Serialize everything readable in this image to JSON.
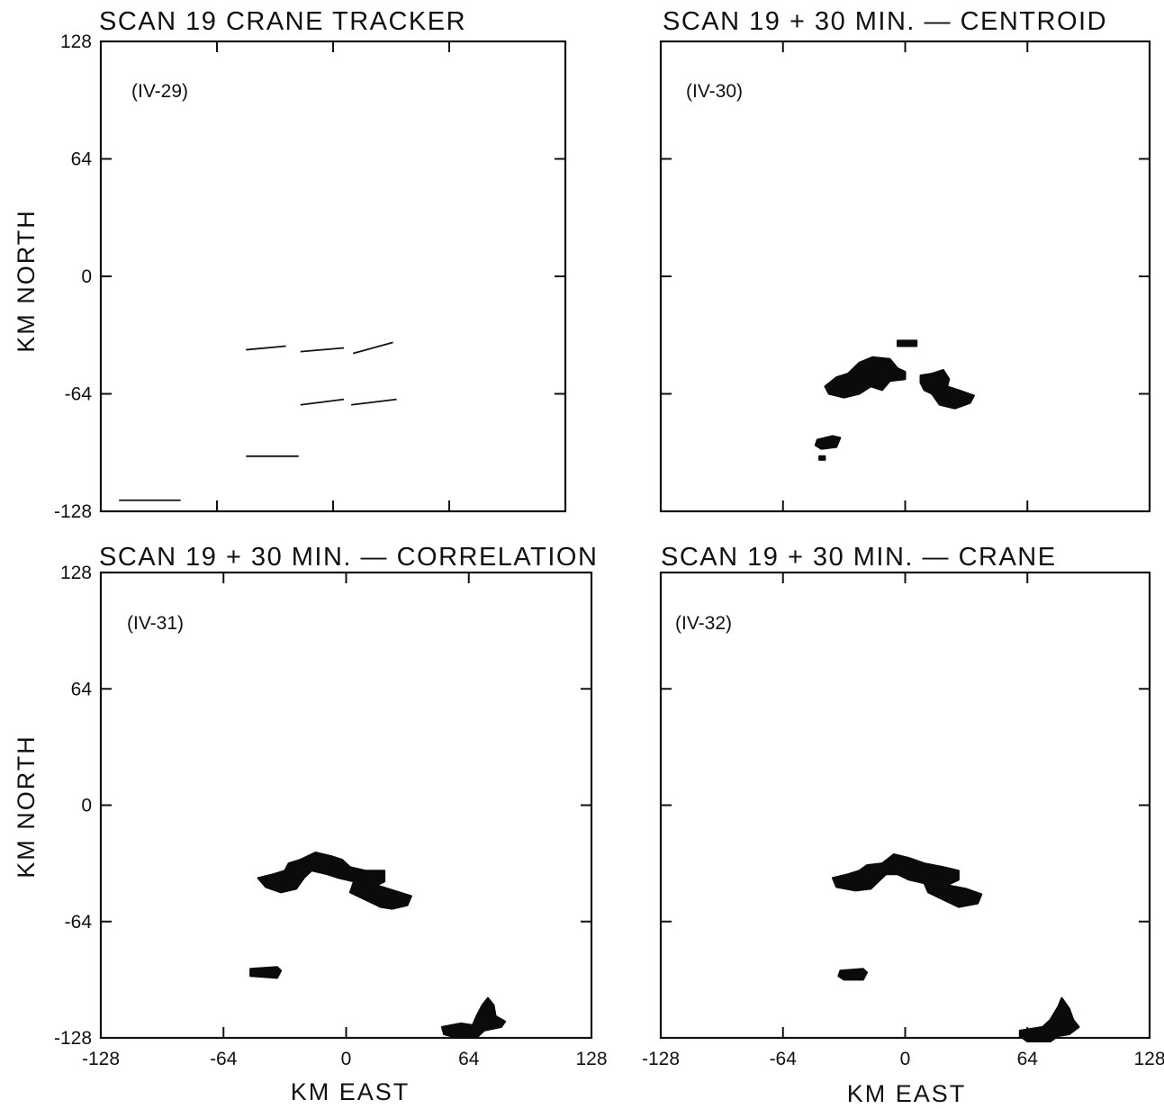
{
  "figure": {
    "xlabel": "KM EAST",
    "ylabel": "KM NORTH"
  },
  "chart_data": [
    {
      "type": "scatter",
      "title": "SCAN 19 CRANE TRACKER",
      "panel_id": "(IV-29)",
      "xlabel": "",
      "ylabel": "KM NORTH",
      "xlim": [
        -128,
        128
      ],
      "ylim": [
        -128,
        128
      ],
      "xticks": [
        -128,
        -64,
        0,
        64,
        128
      ],
      "yticks": [
        128,
        64,
        0,
        -64,
        -128
      ],
      "ytick_labels": [
        "128",
        "64",
        "0",
        "-64",
        "-128"
      ],
      "xtick_labels": [],
      "grid": false,
      "content": "motion vectors",
      "vectors": [
        {
          "x0": -48,
          "y0": -40,
          "x1": -26,
          "y1": -38
        },
        {
          "x0": -18,
          "y0": -41,
          "x1": 6,
          "y1": -39
        },
        {
          "x0": 11,
          "y0": -42,
          "x1": 33,
          "y1": -36
        },
        {
          "x0": -18,
          "y0": -70,
          "x1": 6,
          "y1": -67
        },
        {
          "x0": 10,
          "y0": -70,
          "x1": 35,
          "y1": -67
        },
        {
          "x0": -48,
          "y0": -98,
          "x1": -19,
          "y1": -98
        },
        {
          "x0": -118,
          "y0": -122,
          "x1": -84,
          "y1": -122
        }
      ]
    },
    {
      "type": "scatter",
      "title": "SCAN 19 + 30 MIN. — CENTROID",
      "panel_id": "(IV-30)",
      "xlabel": "",
      "ylabel": "",
      "xlim": [
        -128,
        128
      ],
      "ylim": [
        -128,
        128
      ],
      "xticks": [
        -128,
        -64,
        0,
        64,
        128
      ],
      "yticks": [
        128,
        64,
        0,
        -64,
        -128
      ],
      "xtick_labels": [],
      "ytick_labels": [],
      "grid": false,
      "content": "echo regions",
      "regions": [
        {
          "points": [
            [
              -42,
              -60
            ],
            [
              -36,
              -55
            ],
            [
              -30,
              -53
            ],
            [
              -24,
              -47
            ],
            [
              -17,
              -44
            ],
            [
              -8,
              -45
            ],
            [
              -4,
              -50
            ],
            [
              0,
              -52
            ],
            [
              0,
              -56
            ],
            [
              -8,
              -57
            ],
            [
              -12,
              -62
            ],
            [
              -18,
              -60
            ],
            [
              -24,
              -64
            ],
            [
              -32,
              -66
            ],
            [
              -40,
              -64
            ]
          ]
        },
        {
          "points": [
            [
              -4,
              -35
            ],
            [
              6,
              -35
            ],
            [
              6,
              -38
            ],
            [
              -4,
              -38
            ]
          ]
        },
        {
          "points": [
            [
              8,
              -54
            ],
            [
              14,
              -53
            ],
            [
              20,
              -51
            ],
            [
              23,
              -56
            ],
            [
              22,
              -60
            ],
            [
              28,
              -62
            ],
            [
              36,
              -65
            ],
            [
              34,
              -69
            ],
            [
              26,
              -72
            ],
            [
              18,
              -70
            ],
            [
              14,
              -64
            ],
            [
              10,
              -62
            ],
            [
              8,
              -58
            ]
          ]
        },
        {
          "points": [
            [
              -46,
              -89
            ],
            [
              -38,
              -87
            ],
            [
              -34,
              -88
            ],
            [
              -36,
              -93
            ],
            [
              -44,
              -94
            ],
            [
              -47,
              -92
            ]
          ]
        },
        {
          "points": [
            [
              -45,
              -98
            ],
            [
              -42,
              -98
            ],
            [
              -42,
              -100
            ],
            [
              -45,
              -100
            ]
          ]
        }
      ]
    },
    {
      "type": "scatter",
      "title": "SCAN 19 + 30 MIN. — CORRELATION",
      "panel_id": "(IV-31)",
      "xlabel": "KM EAST",
      "ylabel": "KM NORTH",
      "xlim": [
        -128,
        128
      ],
      "ylim": [
        -128,
        128
      ],
      "xticks": [
        -128,
        -64,
        0,
        64,
        128
      ],
      "yticks": [
        128,
        64,
        0,
        -64,
        -128
      ],
      "xtick_labels": [
        "-128",
        "-64",
        "0",
        "64",
        "128"
      ],
      "ytick_labels": [
        "128",
        "64",
        "0",
        "-64",
        "-128"
      ],
      "grid": false,
      "content": "echo regions",
      "regions": [
        {
          "points": [
            [
              -46,
              -40
            ],
            [
              -38,
              -38
            ],
            [
              -32,
              -36
            ],
            [
              -30,
              -32
            ],
            [
              -24,
              -30
            ],
            [
              -16,
              -26
            ],
            [
              -8,
              -28
            ],
            [
              -2,
              -30
            ],
            [
              2,
              -34
            ],
            [
              10,
              -36
            ],
            [
              20,
              -36
            ],
            [
              20,
              -42
            ],
            [
              16,
              -44
            ],
            [
              28,
              -48
            ],
            [
              34,
              -50
            ],
            [
              32,
              -55
            ],
            [
              24,
              -57
            ],
            [
              18,
              -56
            ],
            [
              10,
              -52
            ],
            [
              2,
              -48
            ],
            [
              4,
              -42
            ],
            [
              -4,
              -40
            ],
            [
              -10,
              -38
            ],
            [
              -18,
              -36
            ],
            [
              -22,
              -40
            ],
            [
              -26,
              -46
            ],
            [
              -34,
              -48
            ],
            [
              -42,
              -45
            ]
          ]
        },
        {
          "points": [
            [
              -50,
              -90
            ],
            [
              -36,
              -89
            ],
            [
              -34,
              -91
            ],
            [
              -36,
              -95
            ],
            [
              -50,
              -94
            ]
          ]
        },
        {
          "points": [
            [
              50,
              -122
            ],
            [
              60,
              -120
            ],
            [
              66,
              -121
            ],
            [
              68,
              -116
            ],
            [
              71,
              -110
            ],
            [
              74,
              -106
            ],
            [
              77,
              -110
            ],
            [
              78,
              -116
            ],
            [
              83,
              -119
            ],
            [
              81,
              -122
            ],
            [
              72,
              -124
            ],
            [
              68,
              -128
            ],
            [
              58,
              -128
            ],
            [
              51,
              -126
            ]
          ]
        }
      ]
    },
    {
      "type": "scatter",
      "title": "SCAN 19 + 30 MIN. — CRANE",
      "panel_id": "(IV-32)",
      "xlabel": "KM EAST",
      "ylabel": "",
      "xlim": [
        -128,
        128
      ],
      "ylim": [
        -128,
        128
      ],
      "xticks": [
        -128,
        -64,
        0,
        64,
        128
      ],
      "yticks": [
        128,
        64,
        0,
        -64,
        -128
      ],
      "xtick_labels": [
        "-128",
        "-64",
        "0",
        "64",
        "128"
      ],
      "ytick_labels": [],
      "grid": false,
      "content": "echo regions",
      "regions": [
        {
          "points": [
            [
              -38,
              -40
            ],
            [
              -30,
              -38
            ],
            [
              -24,
              -36
            ],
            [
              -20,
              -33
            ],
            [
              -12,
              -32
            ],
            [
              -6,
              -27
            ],
            [
              2,
              -29
            ],
            [
              10,
              -32
            ],
            [
              20,
              -34
            ],
            [
              28,
              -36
            ],
            [
              28,
              -41
            ],
            [
              22,
              -44
            ],
            [
              32,
              -46
            ],
            [
              40,
              -49
            ],
            [
              38,
              -54
            ],
            [
              28,
              -56
            ],
            [
              20,
              -52
            ],
            [
              12,
              -48
            ],
            [
              10,
              -43
            ],
            [
              2,
              -41
            ],
            [
              -4,
              -38
            ],
            [
              -10,
              -38
            ],
            [
              -14,
              -42
            ],
            [
              -18,
              -46
            ],
            [
              -26,
              -47
            ],
            [
              -36,
              -45
            ]
          ]
        },
        {
          "points": [
            [
              -34,
              -91
            ],
            [
              -22,
              -90
            ],
            [
              -20,
              -92
            ],
            [
              -22,
              -96
            ],
            [
              -32,
              -96
            ],
            [
              -35,
              -94
            ]
          ]
        },
        {
          "points": [
            [
              60,
              -124
            ],
            [
              72,
              -122
            ],
            [
              76,
              -118
            ],
            [
              80,
              -111
            ],
            [
              82,
              -106
            ],
            [
              86,
              -112
            ],
            [
              88,
              -118
            ],
            [
              91,
              -122
            ],
            [
              86,
              -126
            ],
            [
              80,
              -127
            ],
            [
              76,
              -130
            ],
            [
              64,
              -130
            ],
            [
              60,
              -127
            ]
          ]
        }
      ]
    }
  ]
}
